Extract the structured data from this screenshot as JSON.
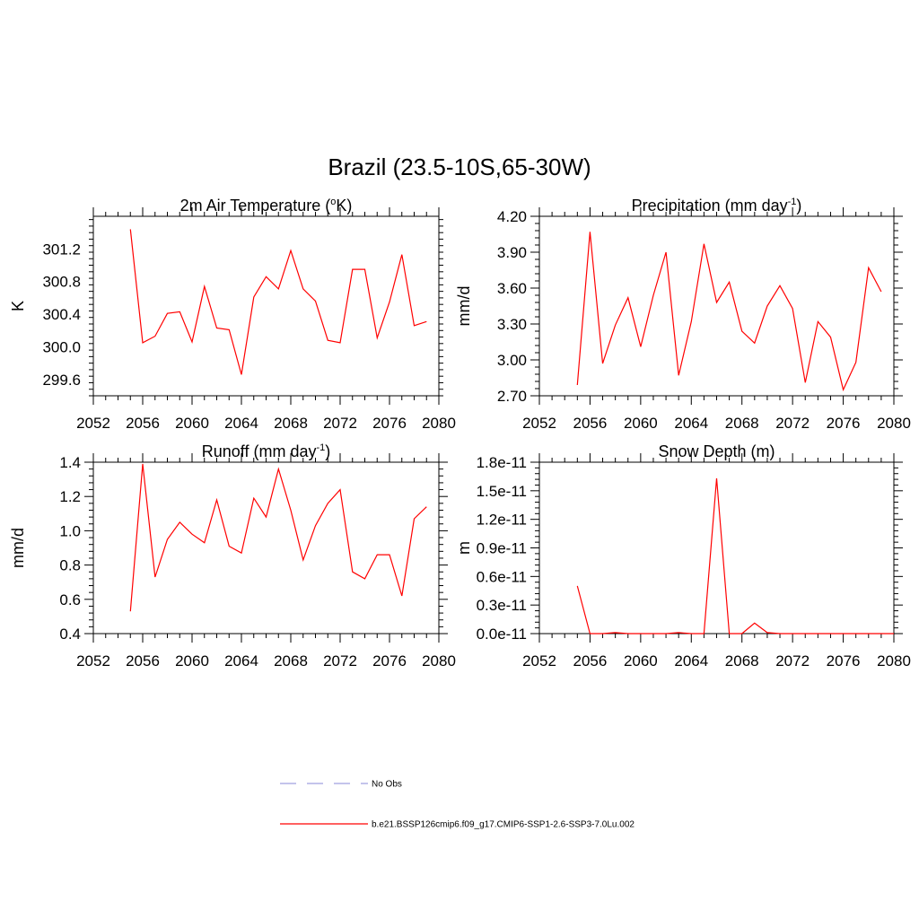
{
  "figure": {
    "title": "Brazil (23.5-10S,65-30W)"
  },
  "legend": {
    "position": "bottom-center",
    "entries": [
      {
        "label": "No Obs",
        "color": "#a0a0e0",
        "style": "dashed"
      },
      {
        "label": "b.e21.BSSP126cmip6.f09_g17.CMIP6-SSP1-2.6-SSP3-7.0Lu.002",
        "color": "#ff0000",
        "style": "solid"
      }
    ]
  },
  "chart_data": [
    {
      "type": "line",
      "title": "2m Air Temperature (",
      "title_sup": "o",
      "title_tail": "K)",
      "ylabel": "K",
      "xlim": [
        2052,
        2080
      ],
      "ylim": [
        299.4,
        301.6
      ],
      "xticks": [
        "2052",
        "2056",
        "2060",
        "2064",
        "2068",
        "2072",
        "2076",
        "2080"
      ],
      "yticks": [
        "299.6",
        "300.0",
        "300.4",
        "300.8",
        "301.2"
      ],
      "grid": false,
      "series": [
        {
          "color": "#ff0000",
          "x": [
            2055,
            2056,
            2057,
            2058,
            2059,
            2060,
            2061,
            2062,
            2063,
            2064,
            2065,
            2066,
            2067,
            2068,
            2069,
            2070,
            2071,
            2072,
            2073,
            2074,
            2075,
            2076,
            2077,
            2078,
            2079
          ],
          "y": [
            301.44,
            300.05,
            300.13,
            300.41,
            300.43,
            300.06,
            300.74,
            300.23,
            300.21,
            299.66,
            300.61,
            300.86,
            300.71,
            301.18,
            300.71,
            300.56,
            300.08,
            300.05,
            300.95,
            300.95,
            300.11,
            300.55,
            301.13,
            300.26,
            300.31
          ]
        }
      ]
    },
    {
      "type": "line",
      "title": "Precipitation (mm day",
      "title_sup": "-1",
      "title_tail": ")",
      "ylabel": "mm/d",
      "xlim": [
        2052,
        2080
      ],
      "ylim": [
        2.7,
        4.2
      ],
      "xticks": [
        "2052",
        "2056",
        "2060",
        "2064",
        "2068",
        "2072",
        "2076",
        "2080"
      ],
      "yticks": [
        "2.70",
        "3.00",
        "3.30",
        "3.60",
        "3.90",
        "4.20"
      ],
      "grid": false,
      "series": [
        {
          "color": "#ff0000",
          "x": [
            2055,
            2056,
            2057,
            2058,
            2059,
            2060,
            2061,
            2062,
            2063,
            2064,
            2065,
            2066,
            2067,
            2068,
            2069,
            2070,
            2071,
            2072,
            2073,
            2074,
            2075,
            2076,
            2077,
            2078,
            2079
          ],
          "y": [
            2.79,
            4.07,
            2.97,
            3.29,
            3.52,
            3.11,
            3.54,
            3.9,
            2.87,
            3.32,
            3.97,
            3.48,
            3.65,
            3.24,
            3.14,
            3.45,
            3.62,
            3.43,
            2.81,
            3.32,
            3.19,
            2.75,
            2.98,
            3.77,
            3.57
          ]
        }
      ]
    },
    {
      "type": "line",
      "title": "Runoff (mm day",
      "title_sup": "-1",
      "title_tail": ")",
      "ylabel": "mm/d",
      "xlim": [
        2052,
        2080
      ],
      "ylim": [
        0.4,
        1.4
      ],
      "xticks": [
        "2052",
        "2056",
        "2060",
        "2064",
        "2068",
        "2072",
        "2076",
        "2080"
      ],
      "yticks": [
        "0.4",
        "0.6",
        "0.8",
        "1.0",
        "1.2",
        "1.4"
      ],
      "grid": false,
      "series": [
        {
          "color": "#ff0000",
          "x": [
            2055,
            2056,
            2057,
            2058,
            2059,
            2060,
            2061,
            2062,
            2063,
            2064,
            2065,
            2066,
            2067,
            2068,
            2069,
            2070,
            2071,
            2072,
            2073,
            2074,
            2075,
            2076,
            2077,
            2078,
            2079
          ],
          "y": [
            0.53,
            1.39,
            0.73,
            0.95,
            1.05,
            0.98,
            0.93,
            1.18,
            0.91,
            0.87,
            1.19,
            1.08,
            1.36,
            1.12,
            0.83,
            1.03,
            1.16,
            1.24,
            0.76,
            0.72,
            0.86,
            0.86,
            0.62,
            1.07,
            1.14
          ]
        }
      ]
    },
    {
      "type": "line",
      "title": "Snow Depth (m)",
      "title_sup": "",
      "title_tail": "",
      "ylabel": "m",
      "xlim": [
        2052,
        2080
      ],
      "ylim": [
        0,
        1.8e-11
      ],
      "xticks": [
        "2052",
        "2056",
        "2060",
        "2064",
        "2068",
        "2072",
        "2076",
        "2080"
      ],
      "yticks": [
        "0.0e-11",
        "0.3e-11",
        "0.6e-11",
        "0.9e-11",
        "1.2e-11",
        "1.5e-11",
        "1.8e-11"
      ],
      "grid": false,
      "series": [
        {
          "color": "#ff0000",
          "x": [
            2055,
            2056,
            2057,
            2058,
            2059,
            2060,
            2061,
            2062,
            2063,
            2064,
            2065,
            2066,
            2067,
            2068,
            2069,
            2070,
            2071,
            2072,
            2073,
            2074,
            2075,
            2076,
            2077,
            2078,
            2079,
            2080
          ],
          "y": [
            5e-12,
            0,
            0,
            1e-13,
            0,
            0,
            0,
            0,
            1e-13,
            0,
            0,
            1.63e-11,
            0,
            0,
            1.1e-12,
            1e-13,
            0,
            0,
            0,
            0,
            0,
            0,
            0,
            0,
            0,
            0
          ]
        }
      ]
    }
  ]
}
